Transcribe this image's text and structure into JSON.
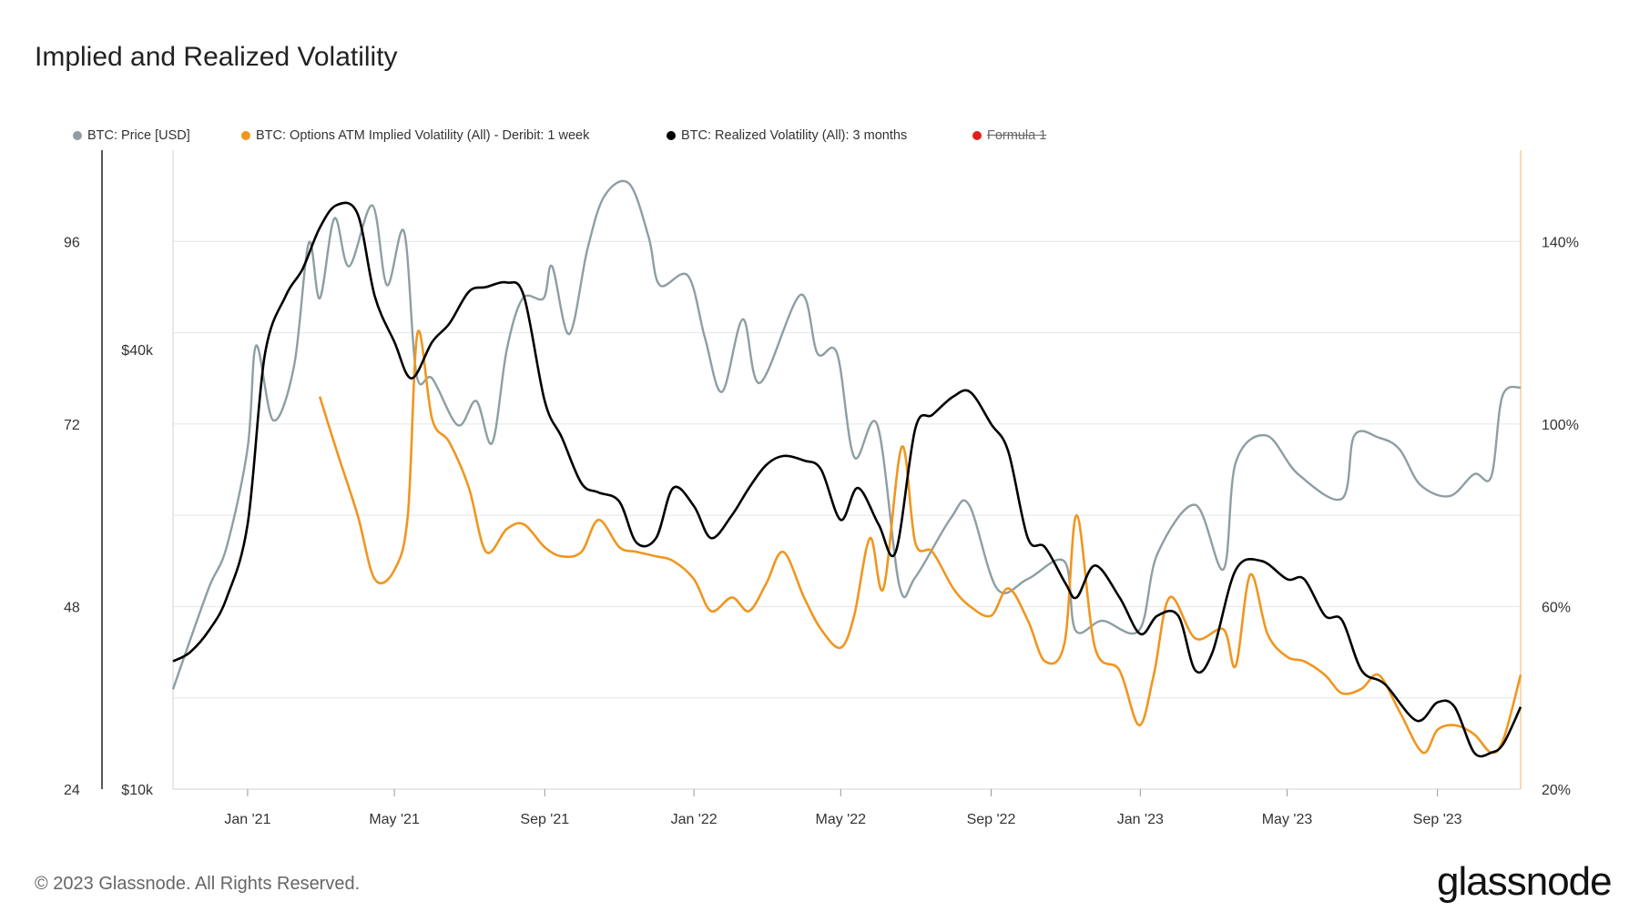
{
  "title": "Implied and Realized Volatility",
  "footer": "© 2023 Glassnode. All Rights Reserved.",
  "brand": "glassnode",
  "legend": [
    {
      "label": "BTC: Price [USD]",
      "color": "#8e9ea2",
      "struck": false
    },
    {
      "label": "BTC: Options ATM Implied Volatility (All) - Deribit: 1 week",
      "color": "#f0961f",
      "struck": false
    },
    {
      "label": "BTC: Realized Volatility (All): 3 months",
      "color": "#000000",
      "struck": false
    },
    {
      "label": "Formula 1",
      "color": "#e0201b",
      "struck": true
    }
  ],
  "chart_data": {
    "type": "line",
    "x_ticks": [
      "Jan '21",
      "May '21",
      "Sep '21",
      "Jan '22",
      "May '22",
      "Sep '22",
      "Jan '23",
      "May '23",
      "Sep '23"
    ],
    "x_range": [
      "2020-11-01",
      "2023-11-08"
    ],
    "axes": {
      "left_outer": {
        "ticks": [
          "96",
          "72",
          "48",
          "24"
        ],
        "range": [
          24,
          108
        ]
      },
      "left_price": {
        "ticks": [
          "$40k",
          "$10k"
        ],
        "scale": "log",
        "range_usd": [
          10000,
          75000
        ]
      },
      "right": {
        "ticks": [
          "140%",
          "100%",
          "60%",
          "20%"
        ],
        "range_pct": [
          20,
          160
        ]
      }
    },
    "grid": true,
    "legend_position": "top-left",
    "series": [
      {
        "name": "BTC: Price [USD]",
        "axis": "left_price",
        "color": "#8e9ea2",
        "points": [
          [
            "2020-11-01",
            13700
          ],
          [
            "2020-11-15",
            16000
          ],
          [
            "2020-12-01",
            19000
          ],
          [
            "2020-12-15",
            21500
          ],
          [
            "2021-01-01",
            29300
          ],
          [
            "2021-01-08",
            40500
          ],
          [
            "2021-01-22",
            32000
          ],
          [
            "2021-02-08",
            38000
          ],
          [
            "2021-02-20",
            56000
          ],
          [
            "2021-03-01",
            47000
          ],
          [
            "2021-03-13",
            60500
          ],
          [
            "2021-03-25",
            52000
          ],
          [
            "2021-04-13",
            63000
          ],
          [
            "2021-04-25",
            49000
          ],
          [
            "2021-05-09",
            58000
          ],
          [
            "2021-05-19",
            37000
          ],
          [
            "2021-06-01",
            36500
          ],
          [
            "2021-06-22",
            31500
          ],
          [
            "2021-07-07",
            34000
          ],
          [
            "2021-07-20",
            29800
          ],
          [
            "2021-08-01",
            40000
          ],
          [
            "2021-08-14",
            47000
          ],
          [
            "2021-08-31",
            47000
          ],
          [
            "2021-09-07",
            52000
          ],
          [
            "2021-09-21",
            42000
          ],
          [
            "2021-10-06",
            55000
          ],
          [
            "2021-10-20",
            65000
          ],
          [
            "2021-11-09",
            67500
          ],
          [
            "2021-11-25",
            57000
          ],
          [
            "2021-12-04",
            49000
          ],
          [
            "2021-12-27",
            50500
          ],
          [
            "2022-01-10",
            41500
          ],
          [
            "2022-01-24",
            35000
          ],
          [
            "2022-02-10",
            44000
          ],
          [
            "2022-02-24",
            36000
          ],
          [
            "2022-03-29",
            47500
          ],
          [
            "2022-04-12",
            39500
          ],
          [
            "2022-04-28",
            39500
          ],
          [
            "2022-05-12",
            28500
          ],
          [
            "2022-05-31",
            31500
          ],
          [
            "2022-06-18",
            19000
          ],
          [
            "2022-07-01",
            19500
          ],
          [
            "2022-07-30",
            23500
          ],
          [
            "2022-08-14",
            24500
          ],
          [
            "2022-09-06",
            18800
          ],
          [
            "2022-10-01",
            19400
          ],
          [
            "2022-10-31",
            20500
          ],
          [
            "2022-11-09",
            16500
          ],
          [
            "2022-12-01",
            17000
          ],
          [
            "2022-12-31",
            16500
          ],
          [
            "2023-01-15",
            21000
          ],
          [
            "2023-02-15",
            24500
          ],
          [
            "2023-03-10",
            20000
          ],
          [
            "2023-03-20",
            28000
          ],
          [
            "2023-04-14",
            30500
          ],
          [
            "2023-05-10",
            27000
          ],
          [
            "2023-06-15",
            25000
          ],
          [
            "2023-06-25",
            30500
          ],
          [
            "2023-07-15",
            30300
          ],
          [
            "2023-08-01",
            29200
          ],
          [
            "2023-08-18",
            26100
          ],
          [
            "2023-09-11",
            25200
          ],
          [
            "2023-10-01",
            27000
          ],
          [
            "2023-10-15",
            26800
          ],
          [
            "2023-10-24",
            34500
          ],
          [
            "2023-11-08",
            35500
          ]
        ]
      },
      {
        "name": "BTC: Options ATM Implied Volatility (All) - Deribit: 1 week",
        "axis": "right",
        "color": "#f0961f",
        "points": [
          [
            "2021-03-01",
            106
          ],
          [
            "2021-03-15",
            94
          ],
          [
            "2021-04-01",
            80
          ],
          [
            "2021-04-15",
            66
          ],
          [
            "2021-05-01",
            68
          ],
          [
            "2021-05-12",
            80
          ],
          [
            "2021-05-20",
            120
          ],
          [
            "2021-06-01",
            101
          ],
          [
            "2021-06-15",
            96
          ],
          [
            "2021-07-01",
            86
          ],
          [
            "2021-07-15",
            72
          ],
          [
            "2021-08-01",
            77
          ],
          [
            "2021-08-15",
            78
          ],
          [
            "2021-09-01",
            73
          ],
          [
            "2021-09-15",
            71
          ],
          [
            "2021-10-01",
            72
          ],
          [
            "2021-10-15",
            79
          ],
          [
            "2021-11-01",
            73
          ],
          [
            "2021-11-15",
            72
          ],
          [
            "2021-12-01",
            71
          ],
          [
            "2021-12-15",
            70
          ],
          [
            "2022-01-01",
            66
          ],
          [
            "2022-01-15",
            59
          ],
          [
            "2022-02-01",
            62
          ],
          [
            "2022-02-15",
            59
          ],
          [
            "2022-03-01",
            65
          ],
          [
            "2022-03-15",
            72
          ],
          [
            "2022-04-01",
            62
          ],
          [
            "2022-04-15",
            55
          ],
          [
            "2022-05-01",
            51
          ],
          [
            "2022-05-12",
            58
          ],
          [
            "2022-05-25",
            75
          ],
          [
            "2022-06-05",
            64
          ],
          [
            "2022-06-20",
            95
          ],
          [
            "2022-07-01",
            74
          ],
          [
            "2022-07-15",
            72
          ],
          [
            "2022-08-01",
            64
          ],
          [
            "2022-08-15",
            60
          ],
          [
            "2022-09-01",
            58
          ],
          [
            "2022-09-15",
            64
          ],
          [
            "2022-10-01",
            57
          ],
          [
            "2022-10-15",
            48
          ],
          [
            "2022-10-31",
            52
          ],
          [
            "2022-11-10",
            80
          ],
          [
            "2022-11-25",
            51
          ],
          [
            "2022-12-15",
            46
          ],
          [
            "2022-12-31",
            34
          ],
          [
            "2023-01-12",
            45
          ],
          [
            "2023-01-25",
            62
          ],
          [
            "2023-02-15",
            53
          ],
          [
            "2023-03-10",
            55
          ],
          [
            "2023-03-20",
            47
          ],
          [
            "2023-04-01",
            67
          ],
          [
            "2023-04-15",
            54
          ],
          [
            "2023-05-01",
            49
          ],
          [
            "2023-05-15",
            48
          ],
          [
            "2023-06-01",
            45
          ],
          [
            "2023-06-15",
            41
          ],
          [
            "2023-07-01",
            42
          ],
          [
            "2023-07-15",
            45
          ],
          [
            "2023-08-01",
            37
          ],
          [
            "2023-08-20",
            28
          ],
          [
            "2023-09-01",
            33
          ],
          [
            "2023-09-15",
            34
          ],
          [
            "2023-10-01",
            32
          ],
          [
            "2023-10-15",
            28
          ],
          [
            "2023-10-25",
            31
          ],
          [
            "2023-11-08",
            45
          ]
        ]
      },
      {
        "name": "BTC: Realized Volatility (All): 3 months",
        "axis": "right",
        "color": "#000000",
        "points": [
          [
            "2020-11-01",
            48
          ],
          [
            "2020-11-15",
            50
          ],
          [
            "2020-12-01",
            55
          ],
          [
            "2020-12-15",
            62
          ],
          [
            "2021-01-01",
            78
          ],
          [
            "2021-01-15",
            115
          ],
          [
            "2021-02-01",
            128
          ],
          [
            "2021-02-15",
            134
          ],
          [
            "2021-03-01",
            143
          ],
          [
            "2021-03-15",
            148
          ],
          [
            "2021-04-01",
            146
          ],
          [
            "2021-04-15",
            128
          ],
          [
            "2021-05-01",
            118
          ],
          [
            "2021-05-15",
            110
          ],
          [
            "2021-06-01",
            118
          ],
          [
            "2021-06-15",
            122
          ],
          [
            "2021-07-01",
            129
          ],
          [
            "2021-07-15",
            130
          ],
          [
            "2021-08-01",
            131
          ],
          [
            "2021-08-15",
            128
          ],
          [
            "2021-09-01",
            105
          ],
          [
            "2021-09-15",
            97
          ],
          [
            "2021-10-01",
            87
          ],
          [
            "2021-10-15",
            85
          ],
          [
            "2021-11-01",
            83
          ],
          [
            "2021-11-15",
            74
          ],
          [
            "2021-12-01",
            75
          ],
          [
            "2021-12-15",
            86
          ],
          [
            "2022-01-01",
            82
          ],
          [
            "2022-01-15",
            75
          ],
          [
            "2022-02-01",
            80
          ],
          [
            "2022-02-15",
            86
          ],
          [
            "2022-03-01",
            91
          ],
          [
            "2022-03-15",
            93
          ],
          [
            "2022-04-01",
            92
          ],
          [
            "2022-04-15",
            90
          ],
          [
            "2022-05-01",
            79
          ],
          [
            "2022-05-15",
            86
          ],
          [
            "2022-06-01",
            78
          ],
          [
            "2022-06-15",
            72
          ],
          [
            "2022-07-01",
            99
          ],
          [
            "2022-07-15",
            102
          ],
          [
            "2022-08-01",
            106
          ],
          [
            "2022-08-15",
            107
          ],
          [
            "2022-09-01",
            100
          ],
          [
            "2022-09-15",
            94
          ],
          [
            "2022-10-01",
            75
          ],
          [
            "2022-10-15",
            73
          ],
          [
            "2022-11-01",
            65
          ],
          [
            "2022-11-10",
            62
          ],
          [
            "2022-11-25",
            69
          ],
          [
            "2022-12-15",
            62
          ],
          [
            "2023-01-01",
            54
          ],
          [
            "2023-01-15",
            58
          ],
          [
            "2023-02-01",
            58
          ],
          [
            "2023-02-15",
            46
          ],
          [
            "2023-03-01",
            50
          ],
          [
            "2023-03-20",
            68
          ],
          [
            "2023-04-10",
            70
          ],
          [
            "2023-05-01",
            66
          ],
          [
            "2023-05-15",
            66
          ],
          [
            "2023-06-01",
            58
          ],
          [
            "2023-06-15",
            57
          ],
          [
            "2023-07-01",
            46
          ],
          [
            "2023-07-20",
            43
          ],
          [
            "2023-08-15",
            35
          ],
          [
            "2023-09-01",
            39
          ],
          [
            "2023-09-15",
            38
          ],
          [
            "2023-10-01",
            28
          ],
          [
            "2023-10-15",
            28
          ],
          [
            "2023-10-25",
            30
          ],
          [
            "2023-11-08",
            38
          ]
        ]
      }
    ]
  }
}
